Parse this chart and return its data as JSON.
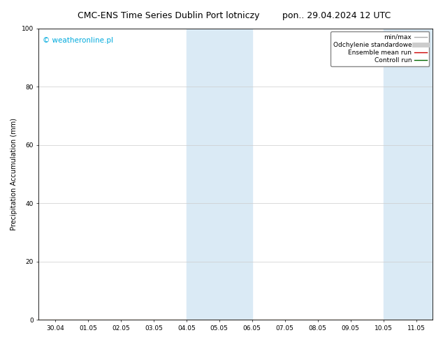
{
  "title_left": "CMC-ENS Time Series Dublin Port lotniczy",
  "title_right": "pon.. 29.04.2024 12 UTC",
  "ylabel": "Precipitation Accumulation (mm)",
  "watermark": "© weatheronline.pl",
  "ylim": [
    0,
    100
  ],
  "yticks": [
    0,
    20,
    40,
    60,
    80,
    100
  ],
  "xtick_labels": [
    "30.04",
    "01.05",
    "02.05",
    "03.05",
    "04.05",
    "05.05",
    "06.05",
    "07.05",
    "08.05",
    "09.05",
    "10.05",
    "11.05"
  ],
  "shaded_regions": [
    {
      "xstart": 4,
      "xend": 6,
      "color": "#daeaf5"
    },
    {
      "xstart": 10,
      "xend": 11.5,
      "color": "#daeaf5"
    }
  ],
  "legend_entries": [
    {
      "label": "min/max",
      "color": "#aaaaaa",
      "lw": 1.0,
      "style": "-"
    },
    {
      "label": "Odchylenie standardowe",
      "color": "#cccccc",
      "lw": 5,
      "style": "-"
    },
    {
      "label": "Ensemble mean run",
      "color": "#cc0000",
      "lw": 1.0,
      "style": "-"
    },
    {
      "label": "Controll run",
      "color": "#006600",
      "lw": 1.0,
      "style": "-"
    }
  ],
  "background_color": "#ffffff",
  "grid_color": "#cccccc",
  "title_fontsize": 9,
  "tick_fontsize": 6.5,
  "ylabel_fontsize": 7,
  "legend_fontsize": 6.5,
  "watermark_fontsize": 7.5,
  "watermark_color": "#00aadd"
}
